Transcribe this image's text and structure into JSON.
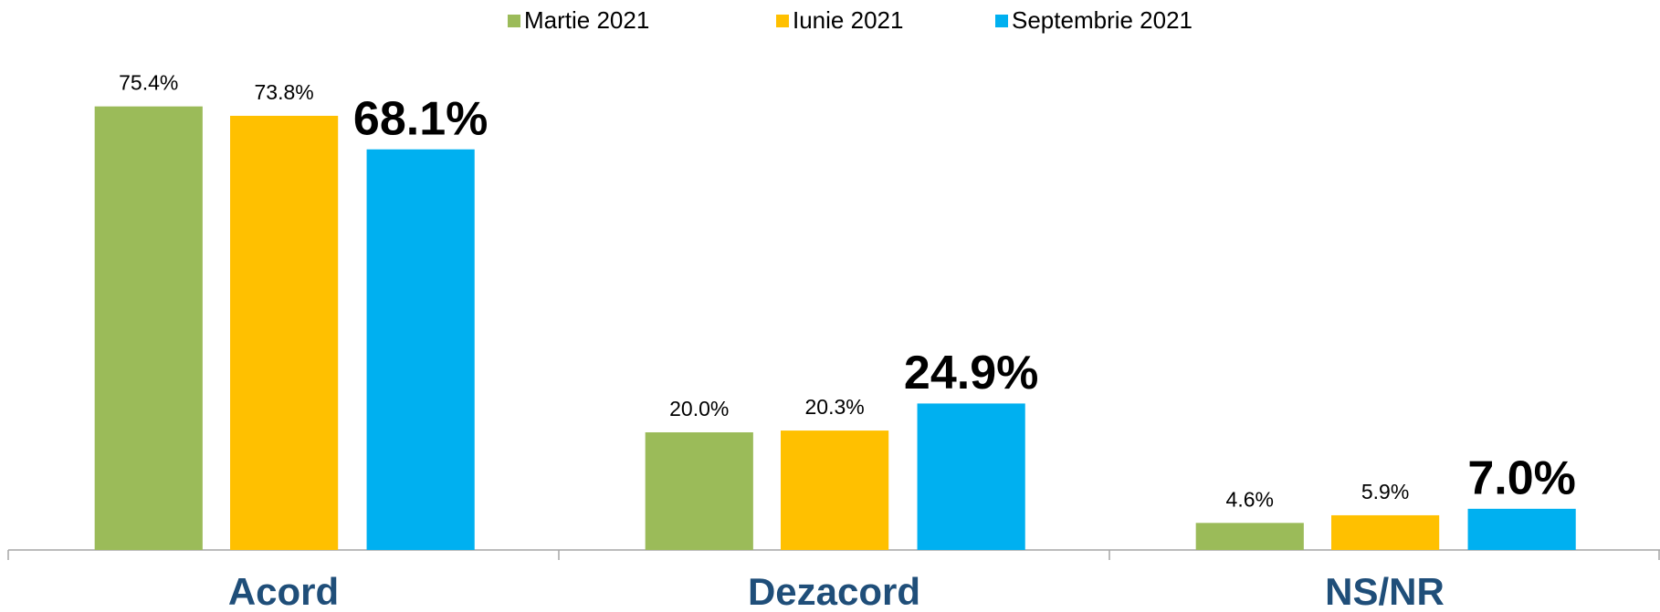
{
  "chart_data": {
    "type": "bar",
    "categories": [
      "Acord",
      "Dezacord",
      "NS/NR"
    ],
    "series": [
      {
        "name": "Martie 2021",
        "color": "#9bbb59",
        "values": [
          75.4,
          20.0,
          4.6
        ],
        "value_labels": [
          "75.4%",
          "20.0%",
          "4.6%"
        ]
      },
      {
        "name": "Iunie 2021",
        "color": "#ffc000",
        "values": [
          73.8,
          20.3,
          5.9
        ],
        "value_labels": [
          "73.8%",
          "20.3%",
          "5.9%"
        ]
      },
      {
        "name": "Septembrie 2021",
        "color": "#00b0f0",
        "values": [
          68.1,
          24.9,
          7.0
        ],
        "value_labels": [
          "68.1%",
          "24.9%",
          "7.0%"
        ]
      }
    ],
    "ylim": [
      0,
      80
    ],
    "legend": "top"
  }
}
